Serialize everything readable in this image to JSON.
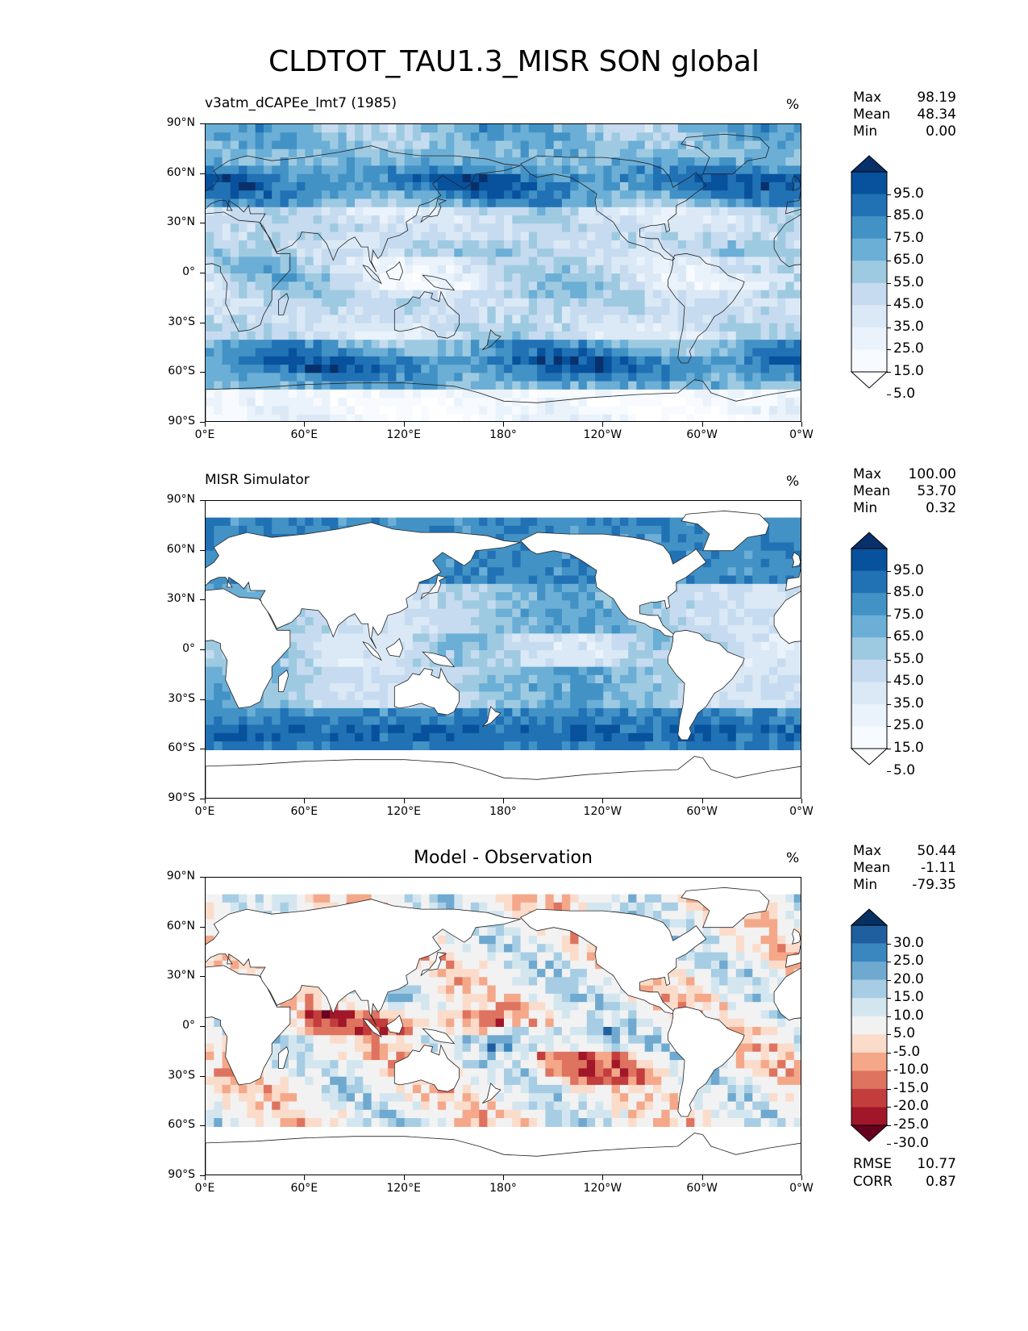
{
  "figure_title": "CLDTOT_TAU1.3_MISR SON global",
  "axes": {
    "lat_ticks": [
      "90°N",
      "60°N",
      "30°N",
      "0°",
      "30°S",
      "60°S",
      "90°S"
    ],
    "lon_ticks": [
      "0°E",
      "60°E",
      "120°E",
      "180°",
      "120°W",
      "60°W",
      "0°W"
    ]
  },
  "panels": [
    {
      "title": "v3atm_dCAPEe_lmt7 (1985)",
      "title_align": "left",
      "unit": "%",
      "stats": [
        {
          "label": "Max",
          "value": "98.19"
        },
        {
          "label": "Mean",
          "value": "48.34"
        },
        {
          "label": "Min",
          "value": "0.00"
        }
      ],
      "colorbar": {
        "labels": [
          "95.0",
          "85.0",
          "75.0",
          "65.0",
          "55.0",
          "45.0",
          "35.0",
          "25.0",
          "15.0",
          "5.0"
        ],
        "colors": [
          "#08306b",
          "#08519c",
          "#2171b5",
          "#4292c6",
          "#6baed6",
          "#9ecae1",
          "#c6dbef",
          "#dbe9f6",
          "#eaf2fb",
          "#f7fbff",
          "#ffffff"
        ]
      }
    },
    {
      "title": "MISR Simulator",
      "title_align": "left",
      "unit": "%",
      "stats": [
        {
          "label": "Max",
          "value": "100.00"
        },
        {
          "label": "Mean",
          "value": "53.70"
        },
        {
          "label": "Min",
          "value": "0.32"
        }
      ],
      "colorbar": {
        "labels": [
          "95.0",
          "85.0",
          "75.0",
          "65.0",
          "55.0",
          "45.0",
          "35.0",
          "25.0",
          "15.0",
          "5.0"
        ],
        "colors": [
          "#08306b",
          "#08519c",
          "#2171b5",
          "#4292c6",
          "#6baed6",
          "#9ecae1",
          "#c6dbef",
          "#dbe9f6",
          "#eaf2fb",
          "#f7fbff",
          "#ffffff"
        ]
      }
    },
    {
      "title": "Model - Observation",
      "title_align": "center",
      "unit": "%",
      "stats": [
        {
          "label": "Max",
          "value": "50.44"
        },
        {
          "label": "Mean",
          "value": "-1.11"
        },
        {
          "label": "Min",
          "value": "-79.35"
        }
      ],
      "colorbar": {
        "labels": [
          "30.0",
          "25.0",
          "20.0",
          "15.0",
          "10.0",
          "5.0",
          "-5.0",
          "-10.0",
          "-15.0",
          "-20.0",
          "-25.0",
          "-30.0"
        ],
        "colors": [
          "#053061",
          "#1f5fa0",
          "#3a87bf",
          "#6fa9d0",
          "#a6cde3",
          "#d3e6f0",
          "#f2f2f2",
          "#fbdcca",
          "#f4a889",
          "#de7360",
          "#c33d3d",
          "#a11628",
          "#67001f"
        ]
      },
      "bottom_stats": [
        {
          "label": "RMSE",
          "value": "10.77"
        },
        {
          "label": "CORR",
          "value": "0.87"
        }
      ]
    }
  ],
  "chart_data": [
    {
      "type": "heatmap",
      "title": "v3atm_dCAPEe_lmt7 (1985)",
      "unit": "%",
      "xlabel": "",
      "ylabel": "",
      "x_ticks": [
        "0°E",
        "60°E",
        "120°E",
        "180°",
        "120°W",
        "60°W",
        "0°W"
      ],
      "y_ticks": [
        "90°N",
        "60°N",
        "30°N",
        "0°",
        "30°S",
        "60°S",
        "90°S"
      ],
      "colorbar_levels": [
        5,
        15,
        25,
        35,
        45,
        55,
        65,
        75,
        85,
        95
      ],
      "max": 98.19,
      "mean": 48.34,
      "min": 0.0
    },
    {
      "type": "heatmap",
      "title": "MISR Simulator",
      "unit": "%",
      "xlabel": "",
      "ylabel": "",
      "x_ticks": [
        "0°E",
        "60°E",
        "120°E",
        "180°",
        "120°W",
        "60°W",
        "0°W"
      ],
      "y_ticks": [
        "90°N",
        "60°N",
        "30°N",
        "0°",
        "30°S",
        "60°S",
        "90°S"
      ],
      "colorbar_levels": [
        5,
        15,
        25,
        35,
        45,
        55,
        65,
        75,
        85,
        95
      ],
      "max": 100.0,
      "mean": 53.7,
      "min": 0.32
    },
    {
      "type": "heatmap",
      "title": "Model - Observation",
      "unit": "%",
      "xlabel": "",
      "ylabel": "",
      "x_ticks": [
        "0°E",
        "60°E",
        "120°E",
        "180°",
        "120°W",
        "60°W",
        "0°W"
      ],
      "y_ticks": [
        "90°N",
        "60°N",
        "30°N",
        "0°",
        "30°S",
        "60°S",
        "90°S"
      ],
      "colorbar_levels": [
        -30,
        -25,
        -20,
        -15,
        -10,
        -5,
        5,
        10,
        15,
        20,
        25,
        30
      ],
      "max": 50.44,
      "mean": -1.11,
      "min": -79.35,
      "rmse": 10.77,
      "corr": 0.87
    }
  ]
}
